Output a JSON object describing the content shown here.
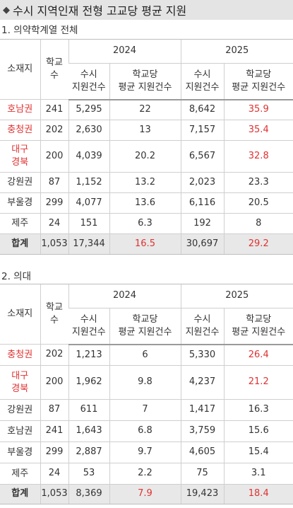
{
  "title": "수시 지역인재 전형 고교당 평균 지원",
  "headers": {
    "region": "소재지",
    "schools_l1": "학교",
    "schools_l2": "수",
    "year_a": "2024",
    "year_b": "2025",
    "apps_l1": "수시",
    "apps_l2": "지원건수",
    "per_l1": "학교당",
    "per_l2": "평균 지원건수"
  },
  "sections": [
    {
      "title": "1. 의약학계열 전체",
      "rows": [
        {
          "region": "호남권",
          "region_lines": [
            "호남권"
          ],
          "schools": "241",
          "apps_2024": "5,295",
          "per_2024": "22",
          "apps_2025": "8,642",
          "per_2025": "35.9",
          "highlight": true
        },
        {
          "region": "충청권",
          "region_lines": [
            "충청권"
          ],
          "schools": "202",
          "apps_2024": "2,630",
          "per_2024": "13",
          "apps_2025": "7,157",
          "per_2025": "35.4",
          "highlight": true
        },
        {
          "region": "대구 경북",
          "region_lines": [
            "대구",
            "경북"
          ],
          "schools": "200",
          "apps_2024": "4,039",
          "per_2024": "20.2",
          "apps_2025": "6,567",
          "per_2025": "32.8",
          "highlight": true
        },
        {
          "region": "강원권",
          "region_lines": [
            "강원권"
          ],
          "schools": "87",
          "apps_2024": "1,152",
          "per_2024": "13.2",
          "apps_2025": "2,023",
          "per_2025": "23.3",
          "highlight": false
        },
        {
          "region": "부울경",
          "region_lines": [
            "부울경"
          ],
          "schools": "299",
          "apps_2024": "4,077",
          "per_2024": "13.6",
          "apps_2025": "6,116",
          "per_2025": "20.5",
          "highlight": false
        },
        {
          "region": "제주",
          "region_lines": [
            "제주"
          ],
          "schools": "24",
          "apps_2024": "151",
          "per_2024": "6.3",
          "apps_2025": "192",
          "per_2025": "8",
          "highlight": false
        }
      ],
      "total": {
        "region": "합계",
        "schools": "1,053",
        "apps_2024": "17,344",
        "per_2024": "16.5",
        "apps_2025": "30,697",
        "per_2025": "29.2"
      }
    },
    {
      "title": "2. 의대",
      "rows": [
        {
          "region": "충청권",
          "region_lines": [
            "충청권"
          ],
          "schools": "202",
          "apps_2024": "1,213",
          "per_2024": "6",
          "apps_2025": "5,330",
          "per_2025": "26.4",
          "highlight": true
        },
        {
          "region": "대구 경북",
          "region_lines": [
            "대구",
            "경북"
          ],
          "schools": "200",
          "apps_2024": "1,962",
          "per_2024": "9.8",
          "apps_2025": "4,237",
          "per_2025": "21.2",
          "highlight": true
        },
        {
          "region": "강원권",
          "region_lines": [
            "강원권"
          ],
          "schools": "87",
          "apps_2024": "611",
          "per_2024": "7",
          "apps_2025": "1,417",
          "per_2025": "16.3",
          "highlight": false
        },
        {
          "region": "호남권",
          "region_lines": [
            "호남권"
          ],
          "schools": "241",
          "apps_2024": "1,643",
          "per_2024": "6.8",
          "apps_2025": "3,759",
          "per_2025": "15.6",
          "highlight": false
        },
        {
          "region": "부울경",
          "region_lines": [
            "부울경"
          ],
          "schools": "299",
          "apps_2024": "2,887",
          "per_2024": "9.7",
          "apps_2025": "4,605",
          "per_2025": "15.4",
          "highlight": false
        },
        {
          "region": "제주",
          "region_lines": [
            "제주"
          ],
          "schools": "24",
          "apps_2024": "53",
          "per_2024": "2.2",
          "apps_2025": "75",
          "per_2025": "3.1",
          "highlight": false
        }
      ],
      "total": {
        "region": "합계",
        "schools": "1,053",
        "apps_2024": "8,369",
        "per_2024": "7.9",
        "apps_2025": "19,423",
        "per_2025": "18.4"
      }
    }
  ],
  "colors": {
    "accent_red": "#e03131",
    "title_bg": "#e4e4e4",
    "total_bg": "#e8e8e8"
  },
  "icons": {
    "title_marker": "diamond-icon"
  }
}
